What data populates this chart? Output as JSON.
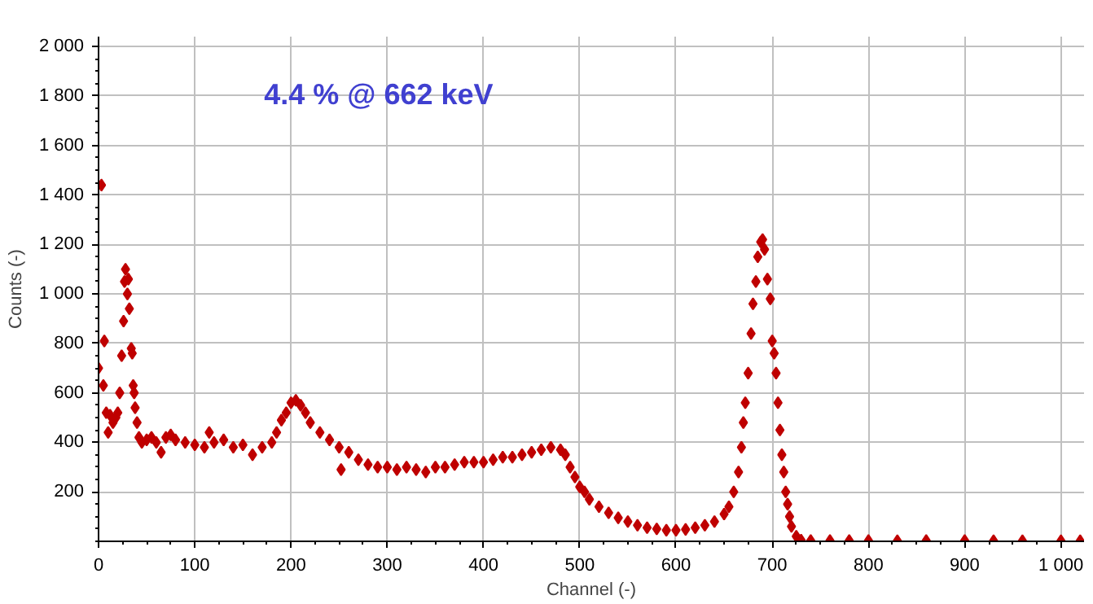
{
  "chart_data": {
    "type": "scatter",
    "xlabel": "Channel (-)",
    "ylabel": "Counts (-)",
    "annotations": [
      "4.4 % @ 662 keV"
    ],
    "x": [
      0,
      3,
      5,
      6,
      8,
      10,
      12,
      15,
      18,
      20,
      22,
      24,
      26,
      27,
      28,
      30,
      31,
      32,
      34,
      35,
      36,
      37,
      38,
      40,
      42,
      45,
      50,
      55,
      60,
      65,
      70,
      75,
      80,
      90,
      100,
      110,
      115,
      120,
      130,
      140,
      150,
      160,
      170,
      180,
      185,
      190,
      195,
      200,
      205,
      210,
      215,
      220,
      230,
      240,
      250,
      252,
      260,
      270,
      280,
      290,
      300,
      310,
      320,
      330,
      340,
      350,
      360,
      370,
      380,
      390,
      400,
      410,
      420,
      430,
      440,
      450,
      460,
      470,
      480,
      485,
      490,
      495,
      500,
      505,
      510,
      520,
      530,
      540,
      550,
      560,
      570,
      580,
      590,
      600,
      610,
      620,
      630,
      640,
      650,
      655,
      660,
      665,
      668,
      670,
      672,
      675,
      678,
      680,
      683,
      685,
      688,
      690,
      692,
      695,
      698,
      700,
      702,
      704,
      706,
      708,
      710,
      712,
      714,
      716,
      718,
      720,
      725,
      730,
      740,
      760,
      780,
      800,
      830,
      860,
      900,
      930,
      960,
      1000,
      1020
    ],
    "series": [
      {
        "color": "#bf0000",
        "values": [
          700,
          1440,
          630,
          810,
          520,
          440,
          510,
          480,
          500,
          520,
          600,
          750,
          890,
          1050,
          1100,
          1000,
          1060,
          940,
          780,
          760,
          630,
          600,
          540,
          480,
          420,
          400,
          410,
          420,
          400,
          360,
          420,
          430,
          410,
          400,
          390,
          380,
          440,
          400,
          410,
          380,
          390,
          350,
          380,
          400,
          440,
          490,
          520,
          560,
          570,
          550,
          520,
          480,
          440,
          410,
          380,
          290,
          360,
          330,
          310,
          300,
          300,
          290,
          300,
          290,
          280,
          300,
          300,
          310,
          320,
          320,
          320,
          330,
          340,
          340,
          350,
          360,
          370,
          380,
          370,
          350,
          300,
          260,
          220,
          200,
          170,
          140,
          115,
          95,
          80,
          65,
          55,
          50,
          45,
          45,
          48,
          55,
          65,
          80,
          110,
          140,
          200,
          280,
          380,
          480,
          560,
          680,
          840,
          960,
          1050,
          1150,
          1210,
          1220,
          1180,
          1060,
          980,
          810,
          760,
          680,
          560,
          450,
          350,
          280,
          200,
          150,
          100,
          60,
          20,
          5,
          3,
          3,
          3,
          3,
          2,
          3,
          3,
          2,
          2,
          2,
          2
        ]
      }
    ],
    "xlim": [
      0,
      1024
    ],
    "ylim": [
      0,
      2040
    ],
    "xticks": [
      0,
      100,
      200,
      300,
      400,
      500,
      600,
      700,
      800,
      900,
      {
        "value": 1000,
        "label": "1 000"
      }
    ],
    "yticks": [
      {
        "value": 200,
        "label": "200"
      },
      {
        "value": 400,
        "label": "400"
      },
      {
        "value": 600,
        "label": "600"
      },
      {
        "value": 800,
        "label": "800"
      },
      {
        "value": 1000,
        "label": "1 000"
      },
      {
        "value": 1200,
        "label": "1 200"
      },
      {
        "value": 1400,
        "label": "1 400"
      },
      {
        "value": 1600,
        "label": "1 600"
      },
      {
        "value": 1800,
        "label": "1 800"
      },
      {
        "value": 2000,
        "label": "2 000"
      }
    ],
    "grid": true,
    "marker": "diamond"
  }
}
